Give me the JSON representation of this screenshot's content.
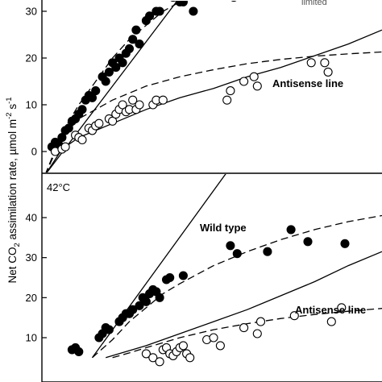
{
  "figure": {
    "ylabel_prefix": "Net CO",
    "ylabel_sub": "2",
    "ylabel_mid": " assimilation rate, µmol m",
    "ylabel_sup1": "-2",
    "ylabel_space": " s",
    "ylabel_sup2": "-1"
  },
  "chart_data": [
    {
      "type": "scatter",
      "panel": "top",
      "temperature_label": "",
      "xlim": [
        0,
        100
      ],
      "ylim": [
        -5,
        35
      ],
      "yticks": [
        0,
        10,
        20,
        30
      ],
      "ytick_labels": [
        "0",
        "10",
        "20",
        "30"
      ],
      "grid": false,
      "annotations": [
        {
          "text": "Antisense line",
          "x": 72,
          "y": 13
        },
        {
          "text": "limited",
          "x": 88,
          "y": 35
        }
      ],
      "series": [
        {
          "name": "",
          "marker": "filled-circle",
          "points": [
            [
              2,
              1
            ],
            [
              3,
              2
            ],
            [
              4,
              1.5
            ],
            [
              5,
              3
            ],
            [
              6,
              4.5
            ],
            [
              7,
              5
            ],
            [
              8,
              6.5
            ],
            [
              9,
              7
            ],
            [
              10,
              8
            ],
            [
              11,
              9
            ],
            [
              12,
              11
            ],
            [
              13,
              12
            ],
            [
              14,
              11.5
            ],
            [
              15,
              13
            ],
            [
              17,
              16
            ],
            [
              18,
              15
            ],
            [
              19,
              17
            ],
            [
              20,
              19
            ],
            [
              21,
              18
            ],
            [
              22,
              20
            ],
            [
              23,
              19
            ],
            [
              24,
              21
            ],
            [
              25,
              22
            ],
            [
              26,
              24
            ],
            [
              27,
              26
            ],
            [
              28,
              23
            ],
            [
              30,
              28
            ],
            [
              31,
              29
            ],
            [
              33,
              30
            ],
            [
              34,
              30
            ],
            [
              38,
              33
            ],
            [
              40,
              32
            ],
            [
              41,
              32
            ],
            [
              44,
              30
            ],
            [
              56,
              33
            ]
          ]
        },
        {
          "name": "",
          "marker": "open-circle",
          "points": [
            [
              3,
              0
            ],
            [
              5,
              0.5
            ],
            [
              6,
              1
            ],
            [
              9,
              3.5
            ],
            [
              10,
              3
            ],
            [
              11,
              2.5
            ],
            [
              13,
              5
            ],
            [
              14,
              4.5
            ],
            [
              15,
              5.5
            ],
            [
              16,
              6
            ],
            [
              19,
              7
            ],
            [
              20,
              6.5
            ],
            [
              21,
              8
            ],
            [
              22,
              9
            ],
            [
              23,
              10
            ],
            [
              24,
              8.5
            ],
            [
              25,
              9
            ],
            [
              26,
              11
            ],
            [
              27,
              9
            ],
            [
              28,
              10
            ],
            [
              32,
              10
            ],
            [
              33,
              11
            ],
            [
              35,
              11
            ],
            [
              54,
              11
            ],
            [
              55,
              13
            ],
            [
              59,
              15
            ],
            [
              62,
              16
            ],
            [
              63,
              14
            ],
            [
              79,
              19
            ],
            [
              83,
              19
            ],
            [
              84,
              17
            ]
          ]
        }
      ],
      "curves": [
        {
          "style": "solid",
          "role": "steep line",
          "x": [
            0,
            40
          ],
          "y": [
            -5,
            33
          ]
        },
        {
          "style": "dashed",
          "role": "steep saturating fit",
          "x": [
            0,
            5,
            10,
            15,
            20,
            25,
            30,
            35,
            40,
            45
          ],
          "y": [
            -5,
            4,
            10,
            15,
            20,
            24,
            27,
            30,
            32,
            34
          ]
        },
        {
          "style": "solid",
          "role": "antisense fit",
          "x": [
            0,
            5,
            10,
            20,
            30,
            40,
            50,
            60,
            70,
            80,
            90,
            100
          ],
          "y": [
            -5,
            0.5,
            3,
            6,
            9,
            11.5,
            13.5,
            16,
            18,
            20.5,
            23,
            26
          ]
        },
        {
          "style": "dashed",
          "role": "antisense saturating fit",
          "x": [
            0,
            5,
            10,
            20,
            30,
            40,
            50,
            60,
            70,
            80,
            90,
            100
          ],
          "y": [
            -5,
            3,
            7,
            11,
            14,
            16,
            17.5,
            18.8,
            19.7,
            20.4,
            20.9,
            21.3
          ]
        }
      ]
    },
    {
      "type": "scatter",
      "panel": "bottom",
      "temperature_label": "42°C",
      "xlim": [
        0,
        100
      ],
      "ylim": [
        6,
        52
      ],
      "yticks": [
        10,
        20,
        30,
        40
      ],
      "ytick_labels": [
        "10",
        "20",
        "30",
        "40"
      ],
      "grid": false,
      "annotations": [
        {
          "text": "Wild type",
          "x": 49,
          "y": 38
        },
        {
          "text": "Antisense line",
          "x": 71,
          "y": 18.5
        }
      ],
      "series": [
        {
          "name": "Wild type",
          "marker": "filled-circle",
          "points": [
            [
              8,
              7
            ],
            [
              9,
              7.5
            ],
            [
              10,
              6.5
            ],
            [
              16,
              10
            ],
            [
              17,
              11
            ],
            [
              18,
              12.5
            ],
            [
              19,
              12
            ],
            [
              22,
              14
            ],
            [
              23,
              15
            ],
            [
              24,
              16
            ],
            [
              25,
              16
            ],
            [
              26,
              17
            ],
            [
              28,
              18
            ],
            [
              29,
              20
            ],
            [
              30,
              19
            ],
            [
              31,
              21
            ],
            [
              32,
              22
            ],
            [
              33,
              21.5
            ],
            [
              34,
              20
            ],
            [
              36,
              24.5
            ],
            [
              37,
              25
            ],
            [
              41,
              25.5
            ],
            [
              55,
              33
            ],
            [
              57,
              31
            ],
            [
              66,
              31.5
            ],
            [
              73,
              37
            ],
            [
              78,
              34
            ],
            [
              89,
              33.5
            ]
          ]
        },
        {
          "name": "Antisense line",
          "marker": "open-circle",
          "points": [
            [
              30,
              6
            ],
            [
              32,
              5
            ],
            [
              34,
              4
            ],
            [
              35,
              7
            ],
            [
              36,
              7.5
            ],
            [
              37,
              6
            ],
            [
              38,
              5.5
            ],
            [
              39,
              6.5
            ],
            [
              40,
              7.5
            ],
            [
              41,
              8
            ],
            [
              42,
              6
            ],
            [
              43,
              5
            ],
            [
              48,
              9.5
            ],
            [
              50,
              10
            ],
            [
              52,
              8
            ],
            [
              59,
              12.5
            ],
            [
              63,
              11
            ],
            [
              64,
              14
            ],
            [
              74,
              15.5
            ],
            [
              85,
              14
            ],
            [
              88,
              17.5
            ]
          ]
        }
      ],
      "curves": [
        {
          "style": "solid",
          "role": "steep line",
          "x": [
            14,
            58
          ],
          "y": [
            5,
            56
          ]
        },
        {
          "style": "dashed",
          "role": "wild type fit",
          "x": [
            14,
            20,
            25,
            30,
            35,
            40,
            50,
            60,
            70,
            80,
            90,
            100
          ],
          "y": [
            5,
            9.5,
            14,
            17.5,
            21,
            23.5,
            28,
            31.5,
            34.5,
            37,
            39,
            40.5
          ]
        },
        {
          "style": "solid",
          "role": "antisense fit",
          "x": [
            18,
            30,
            40,
            50,
            60,
            70,
            80,
            90,
            100
          ],
          "y": [
            5,
            8,
            11,
            14,
            17,
            20.5,
            24,
            28,
            31.5
          ]
        },
        {
          "style": "dashed",
          "role": "antisense saturating fit",
          "x": [
            20,
            25,
            30,
            40,
            50,
            60,
            70,
            80,
            90,
            100
          ],
          "y": [
            5,
            6.2,
            7.5,
            10,
            12,
            13.5,
            14.8,
            15.8,
            16.6,
            17.3
          ]
        }
      ]
    }
  ]
}
